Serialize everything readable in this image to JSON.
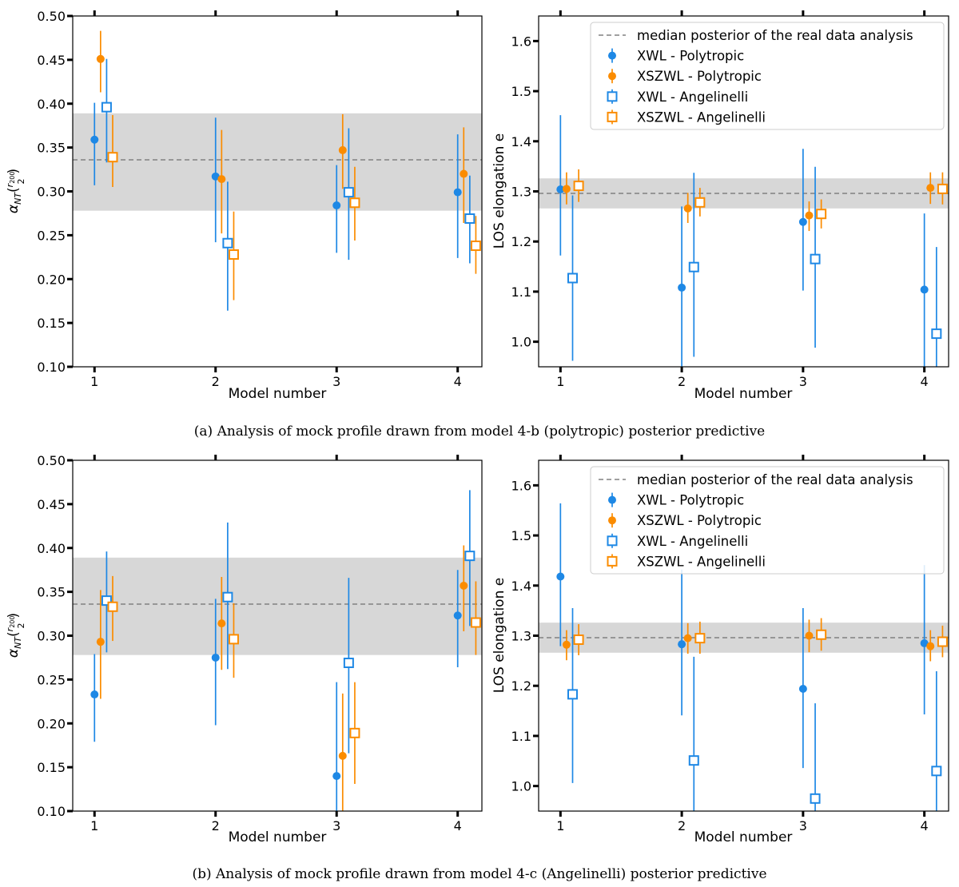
{
  "figure": {
    "legend_entries": [
      {
        "label": "median posterior of the real data analysis",
        "kind": "dashed",
        "color": "#808080"
      },
      {
        "label": "XWL - Polytropic",
        "kind": "circle",
        "color": "#1e88e5"
      },
      {
        "label": "XSZWL - Polytropic",
        "kind": "circle",
        "color": "#fb8c00"
      },
      {
        "label": "XWL - Angelinelli",
        "kind": "square",
        "color": "#1e88e5"
      },
      {
        "label": "XSZWL - Angelinelli",
        "kind": "square",
        "color": "#fb8c00"
      }
    ],
    "colors": {
      "blue": "#1e88e5",
      "orange": "#fb8c00",
      "band": "#d3d3d3",
      "median": "#808080"
    }
  },
  "panels": [
    {
      "caption": "(a) Analysis of mock profile drawn from model 4-b (polytropic) posterior predictive",
      "plots": [
        {
          "id": "a-alpha",
          "xlabel": "Model number",
          "ylabel_main": "α",
          "ylabel_sub": "NT",
          "ylabel_paren_open": "(",
          "ylabel_num": "r",
          "ylabel_num_sub": "200",
          "ylabel_den": "2",
          "ylabel_paren_close": ")"
        },
        {
          "id": "a-elong",
          "xlabel": "Model number",
          "ylabel": "LOS elongation e"
        }
      ]
    },
    {
      "caption": "(b) Analysis of mock profile drawn from model 4-c (Angelinelli) posterior predictive",
      "plots": [
        {
          "id": "b-alpha",
          "xlabel": "Model number",
          "ylabel_main": "α",
          "ylabel_sub": "NT",
          "ylabel_paren_open": "(",
          "ylabel_num": "r",
          "ylabel_num_sub": "200",
          "ylabel_den": "2",
          "ylabel_paren_close": ")"
        },
        {
          "id": "b-elong",
          "xlabel": "Model number",
          "ylabel": "LOS elongation e"
        }
      ]
    }
  ],
  "chart_data": [
    {
      "id": "a-alpha",
      "type": "scatter",
      "xlabel": "Model number",
      "ylabel": "α_NT(r200/2)",
      "xlim": [
        0.82,
        4.2
      ],
      "ylim": [
        0.1,
        0.5
      ],
      "xticks": [
        "1",
        "2",
        "3",
        "4"
      ],
      "yticks": [
        "0.10",
        "0.15",
        "0.20",
        "0.25",
        "0.30",
        "0.35",
        "0.40",
        "0.45",
        "0.50"
      ],
      "median": 0.336,
      "band": [
        0.278,
        0.389
      ],
      "series": [
        {
          "name": "XWL - Polytropic",
          "marker": "circle",
          "color": "#1e88e5",
          "offset": 0.0,
          "points": [
            {
              "x": 1,
              "y": 0.359,
              "lo": 0.307,
              "hi": 0.401
            },
            {
              "x": 2,
              "y": 0.317,
              "lo": 0.242,
              "hi": 0.384
            },
            {
              "x": 3,
              "y": 0.284,
              "lo": 0.23,
              "hi": 0.33
            },
            {
              "x": 4,
              "y": 0.299,
              "lo": 0.224,
              "hi": 0.365
            }
          ]
        },
        {
          "name": "XSZWL - Polytropic",
          "marker": "circle",
          "color": "#fb8c00",
          "offset": 0.05,
          "points": [
            {
              "x": 1,
              "y": 0.451,
              "lo": 0.413,
              "hi": 0.483
            },
            {
              "x": 2,
              "y": 0.314,
              "lo": 0.252,
              "hi": 0.37
            },
            {
              "x": 3,
              "y": 0.347,
              "lo": 0.303,
              "hi": 0.388
            },
            {
              "x": 4,
              "y": 0.32,
              "lo": 0.264,
              "hi": 0.373
            }
          ]
        },
        {
          "name": "XWL - Angelinelli",
          "marker": "square",
          "color": "#1e88e5",
          "offset": 0.1,
          "points": [
            {
              "x": 1,
              "y": 0.396,
              "lo": 0.333,
              "hi": 0.451
            },
            {
              "x": 2,
              "y": 0.241,
              "lo": 0.164,
              "hi": 0.311
            },
            {
              "x": 3,
              "y": 0.299,
              "lo": 0.222,
              "hi": 0.372
            },
            {
              "x": 4,
              "y": 0.269,
              "lo": 0.218,
              "hi": 0.318
            }
          ]
        },
        {
          "name": "XSZWL - Angelinelli",
          "marker": "square",
          "color": "#fb8c00",
          "offset": 0.15,
          "points": [
            {
              "x": 1,
              "y": 0.339,
              "lo": 0.305,
              "hi": 0.387
            },
            {
              "x": 2,
              "y": 0.228,
              "lo": 0.176,
              "hi": 0.277
            },
            {
              "x": 3,
              "y": 0.287,
              "lo": 0.244,
              "hi": 0.328
            },
            {
              "x": 4,
              "y": 0.238,
              "lo": 0.206,
              "hi": 0.272
            }
          ]
        }
      ]
    },
    {
      "id": "a-elong",
      "type": "scatter",
      "xlabel": "Model number",
      "ylabel": "LOS elongation e",
      "xlim": [
        0.82,
        4.2
      ],
      "ylim": [
        0.95,
        1.65
      ],
      "xticks": [
        "1",
        "2",
        "3",
        "4"
      ],
      "yticks": [
        "1.0",
        "1.1",
        "1.2",
        "1.3",
        "1.4",
        "1.5",
        "1.6"
      ],
      "median": 1.296,
      "band": [
        1.266,
        1.326
      ],
      "legend": "top-right",
      "series": [
        {
          "name": "XWL - Polytropic",
          "marker": "circle",
          "color": "#1e88e5",
          "offset": 0.0,
          "points": [
            {
              "x": 1,
              "y": 1.304,
              "lo": 1.172,
              "hi": 1.452
            },
            {
              "x": 2,
              "y": 1.108,
              "lo": 0.95,
              "hi": 1.27
            },
            {
              "x": 3,
              "y": 1.239,
              "lo": 1.102,
              "hi": 1.385
            },
            {
              "x": 4,
              "y": 1.104,
              "lo": 0.95,
              "hi": 1.256
            }
          ]
        },
        {
          "name": "XSZWL - Polytropic",
          "marker": "circle",
          "color": "#fb8c00",
          "offset": 0.05,
          "points": [
            {
              "x": 1,
              "y": 1.305,
              "lo": 1.274,
              "hi": 1.338
            },
            {
              "x": 2,
              "y": 1.266,
              "lo": 1.237,
              "hi": 1.297
            },
            {
              "x": 3,
              "y": 1.252,
              "lo": 1.221,
              "hi": 1.28
            },
            {
              "x": 4,
              "y": 1.307,
              "lo": 1.275,
              "hi": 1.338
            }
          ]
        },
        {
          "name": "XWL - Angelinelli",
          "marker": "square",
          "color": "#1e88e5",
          "offset": 0.1,
          "points": [
            {
              "x": 1,
              "y": 1.127,
              "lo": 0.962,
              "hi": 1.292
            },
            {
              "x": 2,
              "y": 1.149,
              "lo": 0.97,
              "hi": 1.337
            },
            {
              "x": 3,
              "y": 1.165,
              "lo": 0.988,
              "hi": 1.349
            },
            {
              "x": 4,
              "y": 1.016,
              "lo": 0.95,
              "hi": 1.189
            }
          ]
        },
        {
          "name": "XSZWL - Angelinelli",
          "marker": "square",
          "color": "#fb8c00",
          "offset": 0.15,
          "points": [
            {
              "x": 1,
              "y": 1.311,
              "lo": 1.279,
              "hi": 1.344
            },
            {
              "x": 2,
              "y": 1.278,
              "lo": 1.25,
              "hi": 1.307
            },
            {
              "x": 3,
              "y": 1.255,
              "lo": 1.226,
              "hi": 1.284
            },
            {
              "x": 4,
              "y": 1.305,
              "lo": 1.274,
              "hi": 1.338
            }
          ]
        }
      ]
    },
    {
      "id": "b-alpha",
      "type": "scatter",
      "xlabel": "Model number",
      "ylabel": "α_NT(r200/2)",
      "xlim": [
        0.82,
        4.2
      ],
      "ylim": [
        0.1,
        0.5
      ],
      "xticks": [
        "1",
        "2",
        "3",
        "4"
      ],
      "yticks": [
        "0.10",
        "0.15",
        "0.20",
        "0.25",
        "0.30",
        "0.35",
        "0.40",
        "0.45",
        "0.50"
      ],
      "median": 0.336,
      "band": [
        0.278,
        0.389
      ],
      "series": [
        {
          "name": "XWL - Polytropic",
          "marker": "circle",
          "color": "#1e88e5",
          "offset": 0.0,
          "points": [
            {
              "x": 1,
              "y": 0.233,
              "lo": 0.179,
              "hi": 0.279
            },
            {
              "x": 2,
              "y": 0.275,
              "lo": 0.198,
              "hi": 0.342
            },
            {
              "x": 3,
              "y": 0.14,
              "lo": 0.1,
              "hi": 0.247
            },
            {
              "x": 4,
              "y": 0.323,
              "lo": 0.264,
              "hi": 0.375
            }
          ]
        },
        {
          "name": "XSZWL - Polytropic",
          "marker": "circle",
          "color": "#fb8c00",
          "offset": 0.05,
          "points": [
            {
              "x": 1,
              "y": 0.293,
              "lo": 0.228,
              "hi": 0.352
            },
            {
              "x": 2,
              "y": 0.314,
              "lo": 0.261,
              "hi": 0.367
            },
            {
              "x": 3,
              "y": 0.163,
              "lo": 0.1,
              "hi": 0.234
            },
            {
              "x": 4,
              "y": 0.357,
              "lo": 0.305,
              "hi": 0.403
            }
          ]
        },
        {
          "name": "XWL - Angelinelli",
          "marker": "square",
          "color": "#1e88e5",
          "offset": 0.1,
          "points": [
            {
              "x": 1,
              "y": 0.34,
              "lo": 0.281,
              "hi": 0.396
            },
            {
              "x": 2,
              "y": 0.344,
              "lo": 0.262,
              "hi": 0.429
            },
            {
              "x": 3,
              "y": 0.269,
              "lo": 0.166,
              "hi": 0.366
            },
            {
              "x": 4,
              "y": 0.391,
              "lo": 0.311,
              "hi": 0.466
            }
          ]
        },
        {
          "name": "XSZWL - Angelinelli",
          "marker": "square",
          "color": "#fb8c00",
          "offset": 0.15,
          "points": [
            {
              "x": 1,
              "y": 0.333,
              "lo": 0.294,
              "hi": 0.368
            },
            {
              "x": 2,
              "y": 0.296,
              "lo": 0.252,
              "hi": 0.337
            },
            {
              "x": 3,
              "y": 0.189,
              "lo": 0.131,
              "hi": 0.247
            },
            {
              "x": 4,
              "y": 0.315,
              "lo": 0.278,
              "hi": 0.362
            }
          ]
        }
      ]
    },
    {
      "id": "b-elong",
      "type": "scatter",
      "xlabel": "Model number",
      "ylabel": "LOS elongation e",
      "xlim": [
        0.82,
        4.2
      ],
      "ylim": [
        0.95,
        1.65
      ],
      "xticks": [
        "1",
        "2",
        "3",
        "4"
      ],
      "yticks": [
        "1.0",
        "1.1",
        "1.2",
        "1.3",
        "1.4",
        "1.5",
        "1.6"
      ],
      "median": 1.296,
      "band": [
        1.266,
        1.326
      ],
      "legend": "top-right",
      "series": [
        {
          "name": "XWL - Polytropic",
          "marker": "circle",
          "color": "#1e88e5",
          "offset": 0.0,
          "points": [
            {
              "x": 1,
              "y": 1.418,
              "lo": 1.279,
              "hi": 1.564
            },
            {
              "x": 2,
              "y": 1.283,
              "lo": 1.141,
              "hi": 1.432
            },
            {
              "x": 3,
              "y": 1.194,
              "lo": 1.036,
              "hi": 1.355
            },
            {
              "x": 4,
              "y": 1.285,
              "lo": 1.143,
              "hi": 1.441
            }
          ]
        },
        {
          "name": "XSZWL - Polytropic",
          "marker": "circle",
          "color": "#fb8c00",
          "offset": 0.05,
          "points": [
            {
              "x": 1,
              "y": 1.282,
              "lo": 1.251,
              "hi": 1.311
            },
            {
              "x": 2,
              "y": 1.295,
              "lo": 1.264,
              "hi": 1.325
            },
            {
              "x": 3,
              "y": 1.3,
              "lo": 1.267,
              "hi": 1.332
            },
            {
              "x": 4,
              "y": 1.279,
              "lo": 1.249,
              "hi": 1.311
            }
          ]
        },
        {
          "name": "XWL - Angelinelli",
          "marker": "square",
          "color": "#1e88e5",
          "offset": 0.1,
          "points": [
            {
              "x": 1,
              "y": 1.183,
              "lo": 1.006,
              "hi": 1.355
            },
            {
              "x": 2,
              "y": 1.051,
              "lo": 0.95,
              "hi": 1.258
            },
            {
              "x": 3,
              "y": 0.975,
              "lo": 0.95,
              "hi": 1.165
            },
            {
              "x": 4,
              "y": 1.03,
              "lo": 0.95,
              "hi": 1.229
            }
          ]
        },
        {
          "name": "XSZWL - Angelinelli",
          "marker": "square",
          "color": "#fb8c00",
          "offset": 0.15,
          "points": [
            {
              "x": 1,
              "y": 1.292,
              "lo": 1.261,
              "hi": 1.323
            },
            {
              "x": 2,
              "y": 1.295,
              "lo": 1.264,
              "hi": 1.328
            },
            {
              "x": 3,
              "y": 1.302,
              "lo": 1.27,
              "hi": 1.335
            },
            {
              "x": 4,
              "y": 1.288,
              "lo": 1.257,
              "hi": 1.32
            }
          ]
        }
      ]
    }
  ]
}
